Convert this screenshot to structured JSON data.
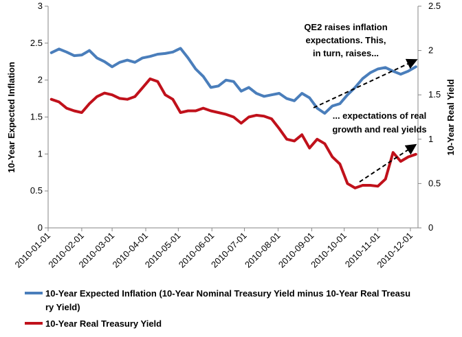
{
  "chart_data": {
    "type": "line",
    "title": "",
    "y_left": {
      "label": "10-Year Expected Inflation",
      "range": [
        0,
        3
      ],
      "ticks": [
        "0",
        "0.5",
        "1",
        "1.5",
        "2",
        "2.5",
        "3"
      ]
    },
    "y_right": {
      "label": "10-Year Real Yield",
      "range": [
        0,
        2.5
      ],
      "ticks": [
        "0",
        "0.5",
        "1",
        "1.5",
        "2",
        "2.5"
      ]
    },
    "x_axis": {
      "ticks": [
        "2010-01-01",
        "2010-02-01",
        "2010-03-01",
        "2010-04-01",
        "2010-05-01",
        "2010-06-01",
        "2010-07-01",
        "2010-08-01",
        "2010-09-01",
        "2010-10-01",
        "2010-11-01",
        "2010-12-01"
      ]
    },
    "grid": false,
    "legend_position": "bottom",
    "series": [
      {
        "name": "10-Year Expected Inflation (10-Year Nominal Treasury Yield minus 10-Year Real Treasury Yield)",
        "axis": "left",
        "color": "#4a7ebb",
        "x": [
          "2010-01-04",
          "2010-01-11",
          "2010-01-18",
          "2010-01-25",
          "2010-02-01",
          "2010-02-08",
          "2010-02-15",
          "2010-02-22",
          "2010-03-01",
          "2010-03-08",
          "2010-03-15",
          "2010-03-22",
          "2010-03-29",
          "2010-04-05",
          "2010-04-12",
          "2010-04-19",
          "2010-04-26",
          "2010-05-03",
          "2010-05-10",
          "2010-05-17",
          "2010-05-24",
          "2010-05-31",
          "2010-06-07",
          "2010-06-14",
          "2010-06-21",
          "2010-06-28",
          "2010-07-05",
          "2010-07-12",
          "2010-07-19",
          "2010-07-26",
          "2010-08-02",
          "2010-08-09",
          "2010-08-16",
          "2010-08-23",
          "2010-08-30",
          "2010-09-06",
          "2010-09-13",
          "2010-09-20",
          "2010-09-27",
          "2010-10-04",
          "2010-10-11",
          "2010-10-18",
          "2010-10-25",
          "2010-11-01",
          "2010-11-08",
          "2010-11-15",
          "2010-11-22",
          "2010-11-29",
          "2010-12-06"
        ],
        "y": [
          2.37,
          2.42,
          2.38,
          2.33,
          2.34,
          2.4,
          2.3,
          2.25,
          2.18,
          2.24,
          2.27,
          2.24,
          2.3,
          2.32,
          2.35,
          2.36,
          2.38,
          2.43,
          2.3,
          2.15,
          2.05,
          1.9,
          1.92,
          2.0,
          1.98,
          1.85,
          1.9,
          1.82,
          1.78,
          1.8,
          1.82,
          1.75,
          1.72,
          1.82,
          1.76,
          1.62,
          1.55,
          1.65,
          1.68,
          1.8,
          1.9,
          2.02,
          2.1,
          2.15,
          2.17,
          2.12,
          2.08,
          2.12,
          2.18
        ]
      },
      {
        "name": "10-Year Real Treasury Yield",
        "axis": "right",
        "color": "#c0111b",
        "x": [
          "2010-01-04",
          "2010-01-11",
          "2010-01-18",
          "2010-01-25",
          "2010-02-01",
          "2010-02-08",
          "2010-02-15",
          "2010-02-22",
          "2010-03-01",
          "2010-03-08",
          "2010-03-15",
          "2010-03-22",
          "2010-03-29",
          "2010-04-05",
          "2010-04-12",
          "2010-04-19",
          "2010-04-26",
          "2010-05-03",
          "2010-05-10",
          "2010-05-17",
          "2010-05-24",
          "2010-05-31",
          "2010-06-07",
          "2010-06-14",
          "2010-06-21",
          "2010-06-28",
          "2010-07-05",
          "2010-07-12",
          "2010-07-19",
          "2010-07-26",
          "2010-08-02",
          "2010-08-09",
          "2010-08-16",
          "2010-08-23",
          "2010-08-30",
          "2010-09-06",
          "2010-09-13",
          "2010-09-20",
          "2010-09-27",
          "2010-10-04",
          "2010-10-11",
          "2010-10-18",
          "2010-10-25",
          "2010-11-01",
          "2010-11-08",
          "2010-11-15",
          "2010-11-22",
          "2010-11-29",
          "2010-12-06"
        ],
        "y": [
          1.45,
          1.42,
          1.35,
          1.32,
          1.3,
          1.4,
          1.48,
          1.52,
          1.5,
          1.46,
          1.45,
          1.48,
          1.58,
          1.68,
          1.65,
          1.5,
          1.45,
          1.3,
          1.32,
          1.32,
          1.35,
          1.32,
          1.3,
          1.28,
          1.25,
          1.18,
          1.25,
          1.27,
          1.26,
          1.23,
          1.12,
          1.0,
          0.98,
          1.05,
          0.9,
          1.0,
          0.95,
          0.8,
          0.72,
          0.5,
          0.45,
          0.48,
          0.48,
          0.47,
          0.55,
          0.85,
          0.75,
          0.8,
          0.83
        ]
      }
    ],
    "annotations": [
      {
        "lines": [
          "QE2 raises inflation",
          "expectations.  This,",
          "in turn, raises..."
        ]
      },
      {
        "lines": [
          "... expectations of real",
          "growth and real yields"
        ]
      }
    ]
  }
}
